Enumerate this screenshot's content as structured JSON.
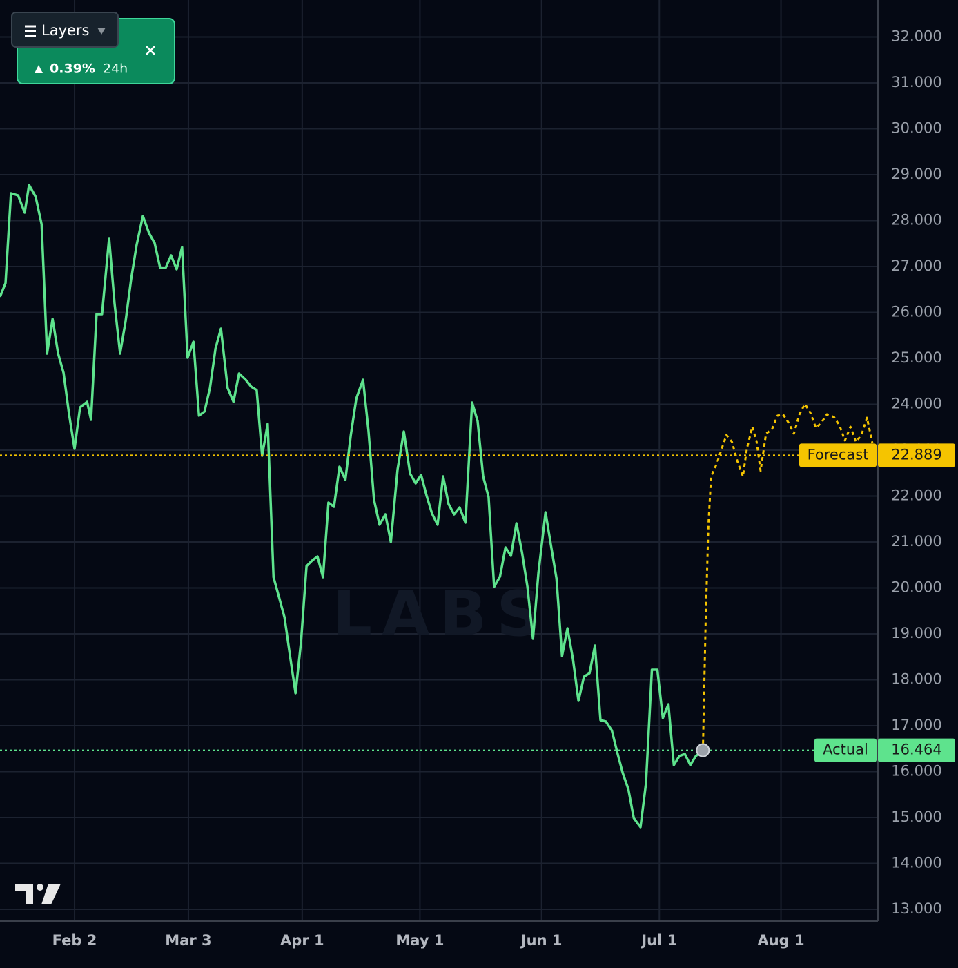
{
  "chart_data": {
    "type": "line",
    "xlim": [
      14,
      237.7
    ],
    "ylim": [
      12744,
      32805
    ],
    "xticks": [
      {
        "value": 33,
        "label": "Feb 2"
      },
      {
        "value": 62,
        "label": "Mar 3"
      },
      {
        "value": 91,
        "label": "Apr 1"
      },
      {
        "value": 121,
        "label": "May 1"
      },
      {
        "value": 152,
        "label": "Jun 1"
      },
      {
        "value": 182,
        "label": "Jul 1"
      },
      {
        "value": 213,
        "label": "Aug 1"
      }
    ],
    "yticks": [
      {
        "value": 13000,
        "label": "13.000"
      },
      {
        "value": 14000,
        "label": "14.000"
      },
      {
        "value": 15000,
        "label": "15.000"
      },
      {
        "value": 16000,
        "label": "16.000"
      },
      {
        "value": 17000,
        "label": "17.000"
      },
      {
        "value": 18000,
        "label": "18.000"
      },
      {
        "value": 19000,
        "label": "19.000"
      },
      {
        "value": 20000,
        "label": "20.000"
      },
      {
        "value": 21000,
        "label": "21.000"
      },
      {
        "value": 22000,
        "label": "22.000"
      },
      {
        "value": 23000,
        "label": "23.000"
      },
      {
        "value": 24000,
        "label": "24.000"
      },
      {
        "value": 25000,
        "label": "25.000"
      },
      {
        "value": 26000,
        "label": "26.000"
      },
      {
        "value": 27000,
        "label": "27.000"
      },
      {
        "value": 28000,
        "label": "28.000"
      },
      {
        "value": 29000,
        "label": "29.000"
      },
      {
        "value": 30000,
        "label": "30.000"
      },
      {
        "value": 31000,
        "label": "31.000"
      },
      {
        "value": 32000,
        "label": "32.000"
      }
    ],
    "grid": true,
    "series": [
      {
        "name": "Actual",
        "color": "#5ee38d",
        "style": "solid",
        "x": [
          14.0,
          15.4,
          16.8,
          18.6,
          20.3,
          21.4,
          23.1,
          24.6,
          26.0,
          27.4,
          28.8,
          30.2,
          31.6,
          33.0,
          34.4,
          36.2,
          37.2,
          38.6,
          40.0,
          41.8,
          43.2,
          44.6,
          46.0,
          47.4,
          48.8,
          50.4,
          52.0,
          53.4,
          54.8,
          56.2,
          57.6,
          59.0,
          60.4,
          61.8,
          63.3,
          64.7,
          66.1,
          67.5,
          68.9,
          70.3,
          72.0,
          73.5,
          74.9,
          76.6,
          78.0,
          79.4,
          80.8,
          82.2,
          83.7,
          85.1,
          86.5,
          87.9,
          89.3,
          90.7,
          92.1,
          93.5,
          94.9,
          96.3,
          97.7,
          99.1,
          100.5,
          102.0,
          103.4,
          104.8,
          106.5,
          107.9,
          109.3,
          110.7,
          112.2,
          113.6,
          115.3,
          116.9,
          118.5,
          119.9,
          121.3,
          122.7,
          124.1,
          125.5,
          126.9,
          128.3,
          129.7,
          131.1,
          132.6,
          134.3,
          135.7,
          137.1,
          138.5,
          139.9,
          141.4,
          142.8,
          144.2,
          145.6,
          147.0,
          148.4,
          149.8,
          151.2,
          153.0,
          154.4,
          155.8,
          157.2,
          158.6,
          160.0,
          161.4,
          162.8,
          164.2,
          165.6,
          167.0,
          168.4,
          169.9,
          171.3,
          172.7,
          174.1,
          175.5,
          177.2,
          178.6,
          180.1,
          181.5,
          182.9,
          184.3,
          185.7,
          187.1,
          188.5,
          189.9,
          191.3,
          193.1
        ],
        "values": [
          26339,
          26639,
          28594,
          28549,
          28173,
          28775,
          28519,
          27918,
          25106,
          25857,
          25106,
          24685,
          23782,
          23030,
          23933,
          24053,
          23662,
          25963,
          25963,
          27617,
          26188,
          25106,
          25812,
          26715,
          27467,
          28098,
          27722,
          27512,
          26970,
          26970,
          27241,
          26940,
          27421,
          25015,
          25361,
          23752,
          23842,
          24354,
          25211,
          25647,
          24354,
          24053,
          24669,
          24534,
          24384,
          24309,
          22880,
          23572,
          20233,
          19797,
          19361,
          18519,
          17707,
          18820,
          20474,
          20594,
          20684,
          20233,
          21857,
          21767,
          22639,
          22354,
          23331,
          24128,
          24534,
          23421,
          21918,
          21376,
          21602,
          21000,
          22579,
          23406,
          22489,
          22278,
          22459,
          22008,
          21617,
          21376,
          22429,
          21827,
          21602,
          21752,
          21421,
          24038,
          23632,
          22429,
          21978,
          20023,
          20248,
          20880,
          20699,
          21406,
          20775,
          20023,
          18895,
          20324,
          21647,
          20925,
          20203,
          18519,
          19120,
          18444,
          17541,
          18068,
          18143,
          18745,
          17120,
          17090,
          16895,
          16414,
          15962,
          15617,
          14985,
          14790,
          15737,
          18218,
          18218,
          17166,
          17466,
          16143,
          16338,
          16384,
          16143,
          16338,
          16464
        ]
      },
      {
        "name": "Forecast",
        "color": "#f5c400",
        "style": "dotted",
        "x": [
          193.1,
          193.8,
          194.5,
          195.2,
          196.6,
          198.0,
          199.1,
          200.5,
          201.9,
          203.3,
          204.3,
          205.7,
          206.8,
          207.8,
          209.2,
          210.7,
          212.1,
          213.5,
          214.9,
          216.3,
          217.7,
          219.1,
          220.5,
          221.9,
          223.3,
          224.7,
          226.5,
          227.9,
          229.3,
          230.7,
          232.1,
          233.5,
          234.9,
          236.3
        ],
        "values": [
          16464,
          19271,
          21376,
          22429,
          22700,
          23060,
          23331,
          23180,
          22760,
          22429,
          23030,
          23512,
          23180,
          22549,
          23361,
          23452,
          23752,
          23782,
          23602,
          23361,
          23782,
          24008,
          23812,
          23482,
          23602,
          23782,
          23722,
          23542,
          23211,
          23512,
          23180,
          23331,
          23707,
          23150
        ]
      }
    ],
    "price_lines": [
      {
        "value": 16464,
        "label": "16.464"
      },
      {
        "value": 22889,
        "label": "22.889"
      }
    ],
    "watermark": "LABS"
  },
  "overlay": {
    "change": "0.39%",
    "period": "24h",
    "layers_button": "Layers"
  }
}
